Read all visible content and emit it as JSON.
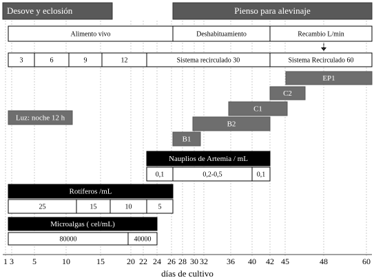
{
  "header": {
    "phases": [
      "Desove y eclosión",
      "Pienso para alevinaje"
    ]
  },
  "rows": {
    "feeding": [
      "Alimento vivo",
      "Deshabituamiento",
      "Recambio L/min"
    ],
    "systems": [
      "3",
      "6",
      "9",
      "12",
      "Sistema recirculado 30",
      "Sistema Recirculado 60"
    ]
  },
  "stages": [
    "EP1",
    "C2",
    "C1",
    "B2",
    "B1"
  ],
  "light": "Luz: noche 12 h",
  "artemia": {
    "title": "Nauplios de Artemia / mL",
    "values": [
      "0,1",
      "0,2-0,5",
      "0,1"
    ]
  },
  "rotifers": {
    "title": "Rotíferos /mL",
    "values": [
      "25",
      "15",
      "10",
      "5"
    ]
  },
  "microalgae": {
    "title": "Microalgas ( cel/mL)",
    "values": [
      "80000",
      "40000"
    ]
  },
  "axis": {
    "ticks": [
      "1",
      "3",
      "5",
      "10",
      "15",
      "20",
      "22",
      "24",
      "26",
      "28",
      "30",
      "32",
      "36",
      "40",
      "42",
      "45",
      "48",
      "60"
    ],
    "label": "días de cultivo"
  }
}
